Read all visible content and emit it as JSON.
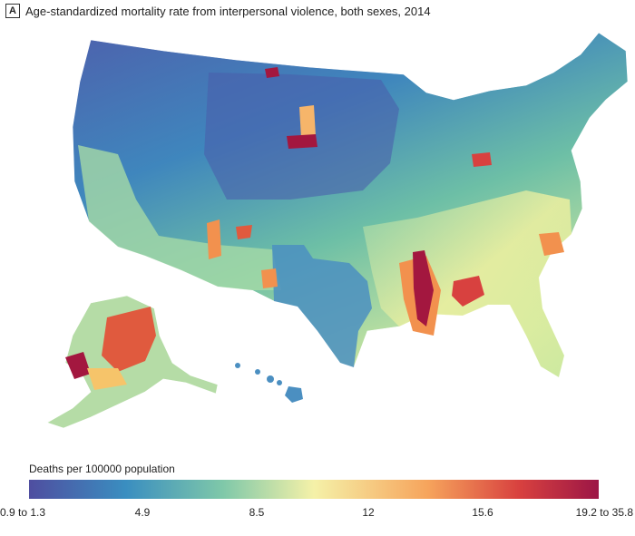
{
  "panel_label": "A",
  "title": "Age-standardized mortality rate from interpersonal violence, both sexes, 2014",
  "legend": {
    "title": "Deaths per 100000 population",
    "ticks": [
      "0.9 to 1.3",
      "4.9",
      "8.5",
      "12",
      "15.6",
      "19.2 to 35.8"
    ],
    "colors": [
      "#4f4ea0",
      "#3a8ec0",
      "#7fc8a9",
      "#f5f1a8",
      "#f6a45c",
      "#d8413f",
      "#9c1646"
    ]
  },
  "colors": {
    "low": "#4a5fab",
    "mid_low": "#4a9ac4",
    "mid": "#8fd0a8",
    "mid_high": "#eef0a0",
    "high": "#f2914e",
    "very_high": "#a3173f",
    "border": "#ffffff"
  }
}
